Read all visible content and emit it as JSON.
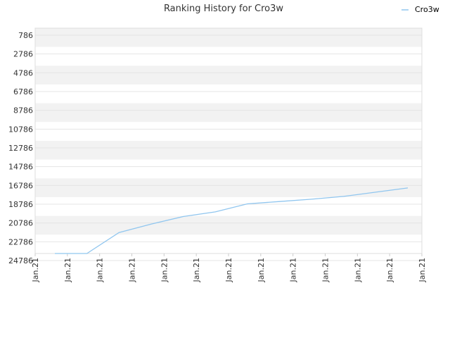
{
  "chart_data": {
    "type": "line",
    "title": "Ranking History for Cro3w",
    "xlabel": "",
    "ylabel": "",
    "y_inverted": true,
    "ylim": [
      786,
      24786
    ],
    "y_ticks": [
      "786",
      "2786",
      "4786",
      "6786",
      "8786",
      "10786",
      "12786",
      "14786",
      "16786",
      "18786",
      "20786",
      "22786",
      "24786"
    ],
    "x_ticks": [
      "Jan.21",
      "Jan.21",
      "Jan.21",
      "Jan.21",
      "Jan.21",
      "Jan.21",
      "Jan.21",
      "Jan.21",
      "Jan.21",
      "Jan.21",
      "Jan.21",
      "Jan.21",
      "Jan.21"
    ],
    "grid": true,
    "legend_position": "top-right",
    "series": [
      {
        "name": "Cro3w",
        "color": "#90c6ef",
        "values": [
          24786,
          24786,
          21800,
          20900,
          20100,
          19600,
          18750,
          18500,
          18250,
          17950,
          17500,
          17050
        ]
      }
    ],
    "band_colors": [
      "#f2f2f2",
      "#ffffff"
    ]
  }
}
